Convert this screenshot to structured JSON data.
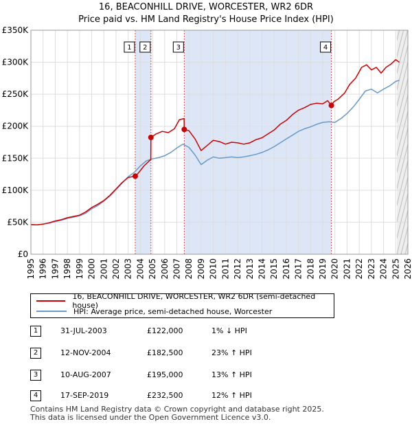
{
  "chart_data": {
    "type": "line",
    "title": "16, BEACONHILL DRIVE, WORCESTER, WR2 6DR",
    "subtitle": "Price paid vs. HM Land Registry's House Price Index (HPI)",
    "x_ticks": [
      "1995",
      "1996",
      "1997",
      "1998",
      "1999",
      "2000",
      "2001",
      "2002",
      "2003",
      "2004",
      "2005",
      "2006",
      "2007",
      "2008",
      "2009",
      "2010",
      "2011",
      "2012",
      "2013",
      "2014",
      "2015",
      "2016",
      "2017",
      "2018",
      "2019",
      "2020",
      "2021",
      "2022",
      "2023",
      "2024",
      "2025",
      "2026"
    ],
    "y_ticks": [
      "£0",
      "£50K",
      "£100K",
      "£150K",
      "£200K",
      "£250K",
      "£300K",
      "£350K"
    ],
    "xlim": [
      1995,
      2026
    ],
    "ylim": [
      0,
      350000
    ],
    "series": [
      {
        "name": "16, BEACONHILL DRIVE, WORCESTER, WR2 6DR (semi-detached house)",
        "color": "#cc0000",
        "x": [
          1995.0,
          1995.5,
          1996.0,
          1996.5,
          1997.0,
          1997.5,
          1998.0,
          1998.5,
          1999.0,
          1999.5,
          2000.0,
          2000.5,
          2001.0,
          2001.5,
          2002.0,
          2002.5,
          2003.0,
          2003.58,
          2003.8,
          2004.3,
          2004.86,
          2004.87,
          2005.3,
          2005.8,
          2006.3,
          2006.8,
          2007.2,
          2007.6,
          2007.61,
          2008.0,
          2008.5,
          2009.0,
          2009.5,
          2010.0,
          2010.5,
          2011.0,
          2011.5,
          2012.0,
          2012.5,
          2013.0,
          2013.5,
          2014.0,
          2014.5,
          2015.0,
          2015.5,
          2016.0,
          2016.5,
          2017.0,
          2017.5,
          2018.0,
          2018.5,
          2019.0,
          2019.4,
          2019.71,
          2019.9,
          2020.3,
          2020.8,
          2021.2,
          2021.7,
          2022.2,
          2022.6,
          2023.0,
          2023.4,
          2023.8,
          2024.2,
          2024.6,
          2025.0,
          2025.3
        ],
        "values": [
          46500,
          46000,
          47000,
          49000,
          52000,
          54000,
          57000,
          59000,
          61000,
          66000,
          73000,
          78000,
          84000,
          92000,
          102000,
          112000,
          120000,
          122000,
          126000,
          138000,
          148000,
          182500,
          188000,
          192000,
          190000,
          196000,
          210000,
          212000,
          195000,
          193000,
          180000,
          162000,
          170000,
          178000,
          176000,
          172000,
          175000,
          174000,
          172000,
          174000,
          179000,
          182000,
          188000,
          194000,
          203000,
          209000,
          218000,
          225000,
          229000,
          234000,
          236000,
          235000,
          240000,
          232500,
          238000,
          243000,
          252000,
          265000,
          275000,
          292000,
          296000,
          288000,
          292000,
          283000,
          292000,
          297000,
          304000,
          300000
        ]
      },
      {
        "name": "HPI: Average price, semi-detached house, Worcester",
        "color": "#6699cc",
        "x": [
          1995.0,
          1995.5,
          1996.0,
          1996.5,
          1997.0,
          1997.5,
          1998.0,
          1998.5,
          1999.0,
          1999.5,
          2000.0,
          2000.5,
          2001.0,
          2001.5,
          2002.0,
          2002.5,
          2003.0,
          2003.5,
          2004.0,
          2004.5,
          2005.0,
          2005.5,
          2006.0,
          2006.5,
          2007.0,
          2007.5,
          2008.0,
          2008.5,
          2009.0,
          2009.5,
          2010.0,
          2010.5,
          2011.0,
          2011.5,
          2012.0,
          2012.5,
          2013.0,
          2013.5,
          2014.0,
          2014.5,
          2015.0,
          2015.5,
          2016.0,
          2016.5,
          2017.0,
          2017.5,
          2018.0,
          2018.5,
          2019.0,
          2019.5,
          2020.0,
          2020.5,
          2021.0,
          2021.5,
          2022.0,
          2022.5,
          2023.0,
          2023.5,
          2024.0,
          2024.5,
          2025.0,
          2025.3
        ],
        "values": [
          46000,
          46000,
          47000,
          49000,
          51000,
          53000,
          56000,
          58000,
          60000,
          64000,
          71000,
          76000,
          83000,
          91000,
          101000,
          111000,
          121000,
          128000,
          138000,
          146000,
          149000,
          151000,
          154000,
          159000,
          166000,
          172000,
          167000,
          155000,
          140000,
          147000,
          152000,
          150000,
          151000,
          152000,
          151000,
          152000,
          154000,
          156000,
          159000,
          163000,
          168000,
          174000,
          180000,
          186000,
          192000,
          196000,
          199000,
          203000,
          206000,
          207000,
          206000,
          212000,
          220000,
          230000,
          242000,
          255000,
          258000,
          252000,
          258000,
          263000,
          270000,
          272000
        ]
      }
    ],
    "sales": [
      {
        "label": "1",
        "x": 2003.58,
        "value": 122000
      },
      {
        "label": "2",
        "x": 2004.87,
        "value": 182500
      },
      {
        "label": "3",
        "x": 2007.61,
        "value": 195000
      },
      {
        "label": "4",
        "x": 2019.71,
        "value": 232500
      }
    ]
  },
  "legend": {
    "red_label": "16, BEACONHILL DRIVE, WORCESTER, WR2 6DR (semi-detached house)",
    "blue_label": "HPI: Average price, semi-detached house, Worcester"
  },
  "table": [
    {
      "num": "1",
      "date": "31-JUL-2003",
      "price": "£122,000",
      "hpi": "1% ↓ HPI"
    },
    {
      "num": "2",
      "date": "12-NOV-2004",
      "price": "£182,500",
      "hpi": "23% ↑ HPI"
    },
    {
      "num": "3",
      "date": "10-AUG-2007",
      "price": "£195,000",
      "hpi": "13% ↑ HPI"
    },
    {
      "num": "4",
      "date": "17-SEP-2019",
      "price": "£232,500",
      "hpi": "12% ↑ HPI"
    }
  ],
  "footer": {
    "line1": "Contains HM Land Registry data © Crown copyright and database right 2025.",
    "line2": "This data is licensed under the Open Government Licence v3.0."
  },
  "colors": {
    "red": "#cc0000",
    "blue": "#6699cc",
    "shade": "#dde6f7"
  }
}
